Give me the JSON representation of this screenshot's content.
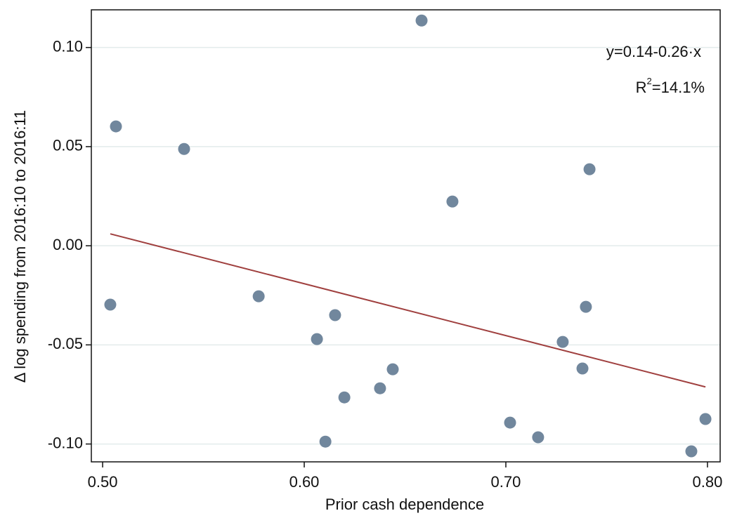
{
  "chart_data": {
    "type": "scatter",
    "x_label": "Prior cash dependence",
    "y_label": "Δ log spending from 2016:10 to 2016:11",
    "annotation": "y=0.14-0.26·x",
    "r2_label": {
      "base": "R",
      "sup": "2",
      "text": "=14.1%"
    },
    "color": "#71879d",
    "x": [
      0.5038,
      0.5066,
      0.5404,
      0.5774,
      0.6063,
      0.6153,
      0.6105,
      0.6199,
      0.6376,
      0.6439,
      0.6582,
      0.6735,
      0.7021,
      0.716,
      0.7282,
      0.738,
      0.7397,
      0.7415,
      0.792,
      0.799
    ],
    "values": [
      -0.0297,
      0.0602,
      0.0488,
      -0.0255,
      -0.0471,
      -0.035,
      -0.0988,
      -0.0765,
      -0.0719,
      -0.0623,
      0.1136,
      0.0223,
      -0.0892,
      -0.0966,
      -0.0485,
      -0.0619,
      -0.0308,
      0.0386,
      -0.1037,
      -0.0874
    ],
    "fit_line": {
      "x": [
        0.5038,
        0.799
      ],
      "values": [
        0.006,
        -0.0712
      ],
      "color": "#a0403f"
    },
    "xlim": [
      0.4944,
      0.8063
    ],
    "ylim": [
      -0.109,
      0.119
    ],
    "xticks": [
      {
        "value": 0.5,
        "label": "0.50"
      },
      {
        "value": 0.6,
        "label": "0.60"
      },
      {
        "value": 0.7,
        "label": "0.70"
      },
      {
        "value": 0.8,
        "label": "0.80"
      }
    ],
    "yticks": [
      {
        "value": -0.1,
        "label": "-0.10"
      },
      {
        "value": -0.05,
        "label": "-0.05"
      },
      {
        "value": 0,
        "label": "0.00"
      },
      {
        "value": 0.05,
        "label": "0.05"
      },
      {
        "value": 0.1,
        "label": "0.10"
      }
    ],
    "grid": true
  }
}
